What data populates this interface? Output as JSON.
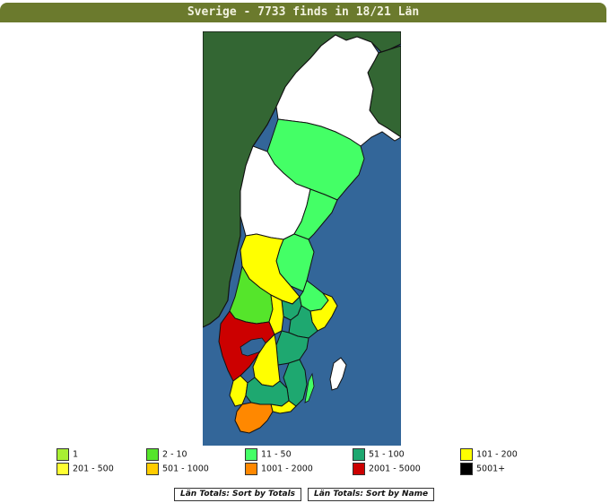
{
  "header": {
    "title": "Sverige - 7733 finds in 18/21 Län"
  },
  "legend": [
    {
      "label": "1",
      "color": "#a8f032"
    },
    {
      "label": "2 - 10",
      "color": "#55e52b"
    },
    {
      "label": "11 - 50",
      "color": "#44ff66"
    },
    {
      "label": "51 - 100",
      "color": "#1ea870"
    },
    {
      "label": "101 - 200",
      "color": "#ffff00"
    },
    {
      "label": "201 - 500",
      "color": "#ffff33"
    },
    {
      "label": "501 - 1000",
      "color": "#ffcc00"
    },
    {
      "label": "1001 - 2000",
      "color": "#ff8800"
    },
    {
      "label": "2001 - 5000",
      "color": "#cc0000"
    },
    {
      "label": "5001+",
      "color": "#000000"
    }
  ],
  "map": {
    "colors": {
      "sea": "#336699",
      "land_neighbor": "#336633",
      "no_data": "#ffffff",
      "border": "#111111"
    }
  },
  "buttons": {
    "sort_totals": "Län Totals: Sort by Totals",
    "sort_name": "Län Totals: Sort by Name"
  }
}
